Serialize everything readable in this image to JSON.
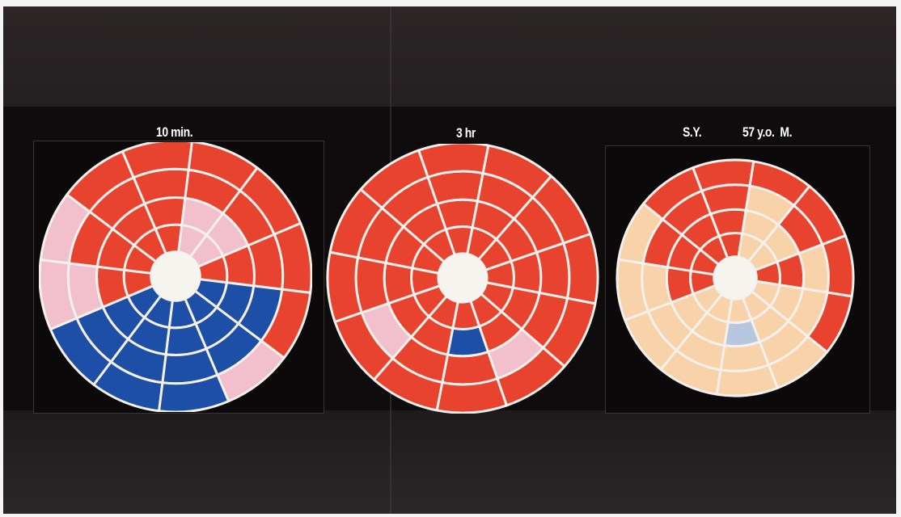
{
  "labels": {
    "left": "10 min.",
    "middle": "3 hr",
    "right_patient": "S.Y.",
    "right_info": "57 y.o.  M."
  },
  "colors": {
    "normal": "#e8432e",
    "mild": "#f2c0cc",
    "severe": "#1e4fa6",
    "faint": "#f8d2a8",
    "faint_blue": "#b8c6e0",
    "grid": "#f4f0ec",
    "center": "#f5f4ee"
  },
  "maps": [
    {
      "name": "map-10-min",
      "rings": [
        {
          "segments": 12,
          "states": [
            "normal",
            "mild",
            "mild",
            "normal",
            "severe",
            "severe",
            "severe",
            "severe",
            "severe",
            "normal",
            "normal",
            "normal"
          ]
        },
        {
          "segments": 12,
          "states": [
            "normal",
            "mild",
            "mild",
            "normal",
            "severe",
            "severe",
            "severe",
            "severe",
            "severe",
            "normal",
            "normal",
            "normal"
          ]
        },
        {
          "segments": 12,
          "states": [
            "normal",
            "normal",
            "normal",
            "normal",
            "severe",
            "severe",
            "severe",
            "severe",
            "severe",
            "mild",
            "normal",
            "normal"
          ]
        },
        {
          "segments": 12,
          "states": [
            "normal",
            "normal",
            "normal",
            "normal",
            "normal",
            "mild",
            "severe",
            "severe",
            "severe",
            "mild",
            "mild",
            "normal"
          ]
        }
      ]
    },
    {
      "name": "map-3-hr",
      "rings": [
        {
          "segments": 12,
          "states": [
            "normal",
            "normal",
            "normal",
            "normal",
            "normal",
            "normal",
            "normal",
            "normal",
            "normal",
            "normal",
            "normal",
            "normal"
          ]
        },
        {
          "segments": 12,
          "states": [
            "normal",
            "normal",
            "normal",
            "normal",
            "normal",
            "normal",
            "severe",
            "normal",
            "normal",
            "normal",
            "normal",
            "normal"
          ]
        },
        {
          "segments": 12,
          "states": [
            "normal",
            "normal",
            "normal",
            "normal",
            "normal",
            "mild",
            "normal",
            "normal",
            "mild",
            "normal",
            "normal",
            "normal"
          ]
        },
        {
          "segments": 12,
          "states": [
            "normal",
            "normal",
            "normal",
            "normal",
            "normal",
            "normal",
            "normal",
            "normal",
            "normal",
            "normal",
            "normal",
            "normal"
          ]
        }
      ]
    },
    {
      "name": "map-patient",
      "rings": [
        {
          "segments": 12,
          "states": [
            "normal",
            "faint",
            "faint",
            "normal",
            "faint",
            "faint",
            "faint",
            "faint",
            "faint",
            "normal",
            "normal",
            "normal"
          ]
        },
        {
          "segments": 12,
          "states": [
            "normal",
            "faint",
            "faint",
            "normal",
            "faint",
            "faint",
            "faint_blue",
            "faint",
            "faint",
            "normal",
            "normal",
            "normal"
          ]
        },
        {
          "segments": 12,
          "states": [
            "normal",
            "faint",
            "normal",
            "faint",
            "faint",
            "faint",
            "faint",
            "faint",
            "faint",
            "faint",
            "normal",
            "normal"
          ]
        },
        {
          "segments": 12,
          "states": [
            "normal",
            "normal",
            "normal",
            "normal",
            "normal",
            "faint",
            "faint",
            "faint",
            "faint",
            "faint",
            "faint",
            "normal"
          ]
        }
      ]
    }
  ]
}
